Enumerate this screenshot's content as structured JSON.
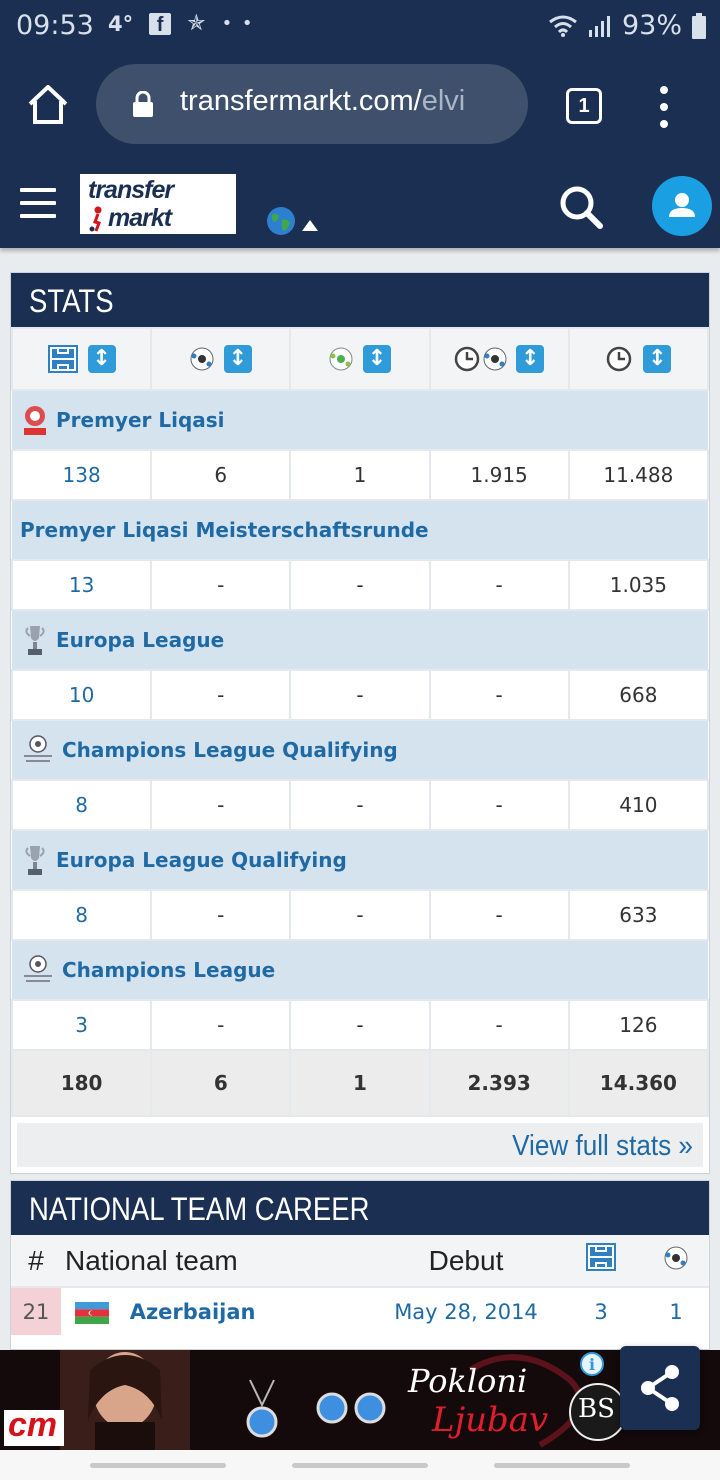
{
  "status_bar": {
    "time": "09:53",
    "temperature": "4°",
    "battery": "93%",
    "icons": [
      "facebook-icon",
      "star-icon",
      "more-dots-icon",
      "wifi-icon",
      "signal-icon",
      "battery-icon"
    ]
  },
  "browser": {
    "url_main": "transfermarkt.com/",
    "url_dim": "elvi",
    "tab_count": "1"
  },
  "site": {
    "logo_line1": "transfer",
    "logo_line2": "markt"
  },
  "stats": {
    "title": "STATS",
    "header_icons": [
      "appearances-pitch-icon",
      "goals-ball-icon",
      "assists-ball-icon",
      "minutes-per-goal-icon",
      "minutes-played-icon"
    ],
    "competitions": [
      {
        "name": "Premyer Liqasi",
        "icon": "premyer-liqasi-logo-icon",
        "values": [
          "138",
          "6",
          "1",
          "1.915",
          "11.488"
        ]
      },
      {
        "name": "Premyer Liqasi Meisterschaftsrunde",
        "icon": "",
        "values": [
          "13",
          "-",
          "-",
          "-",
          "1.035"
        ]
      },
      {
        "name": "Europa League",
        "icon": "europa-league-trophy-icon",
        "values": [
          "10",
          "-",
          "-",
          "-",
          "668"
        ]
      },
      {
        "name": "Champions League Qualifying",
        "icon": "champions-league-logo-icon",
        "values": [
          "8",
          "-",
          "-",
          "-",
          "410"
        ]
      },
      {
        "name": "Europa League Qualifying",
        "icon": "europa-league-trophy-icon",
        "values": [
          "8",
          "-",
          "-",
          "-",
          "633"
        ]
      },
      {
        "name": "Champions League",
        "icon": "champions-league-logo-icon",
        "values": [
          "3",
          "-",
          "-",
          "-",
          "126"
        ]
      }
    ],
    "totals": [
      "180",
      "6",
      "1",
      "2.393",
      "14.360"
    ],
    "view_full": "View full stats »"
  },
  "national": {
    "title": "NATIONAL TEAM CAREER",
    "col_hash": "#",
    "col_team": "National team",
    "col_debut": "Debut",
    "rows": [
      {
        "rank": "21",
        "team": "Azerbaijan",
        "debut": "May 28, 2014",
        "apps": "3",
        "goals": "1"
      }
    ]
  },
  "ad": {
    "brand_left": "cm",
    "slogan_line1": "Pokloni",
    "slogan_line2": "Ljubav",
    "brand_right": "BS"
  },
  "colors": {
    "navy": "#1b2f52",
    "link": "#1f6aa5",
    "accent_blue": "#1aa0e2",
    "row_blue": "#d5e3ee"
  }
}
